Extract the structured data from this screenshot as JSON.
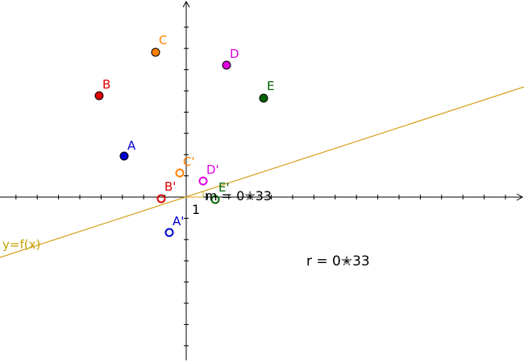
{
  "line_label": "y=f(x)",
  "slope_text": "m = 0✭33",
  "unit_text": "1",
  "r_text": "r  =  0✭33",
  "colors": {
    "axis": "#000000",
    "line": "#d4a017",
    "label_line": "#c8a000"
  },
  "points": [
    {
      "id": "A",
      "label": "A",
      "color": "#0000cc",
      "filled": true
    },
    {
      "id": "B",
      "label": "B",
      "color": "#e00000",
      "filled": true
    },
    {
      "id": "C",
      "label": "C",
      "color": "#ff8000",
      "filled": true
    },
    {
      "id": "D",
      "label": "D",
      "color": "#e000e0",
      "filled": true
    },
    {
      "id": "E",
      "label": "E",
      "color": "#006400",
      "filled": true
    },
    {
      "id": "A2",
      "label": "A'",
      "color": "#0000cc",
      "filled": false
    },
    {
      "id": "B2",
      "label": "B'",
      "color": "#e00000",
      "filled": false
    },
    {
      "id": "C2",
      "label": "C'",
      "color": "#ff8000",
      "filled": false
    },
    {
      "id": "D2",
      "label": "D'",
      "color": "#e000e0",
      "filled": false
    },
    {
      "id": "E2",
      "label": "E'",
      "color": "#006400",
      "filled": false
    }
  ]
}
